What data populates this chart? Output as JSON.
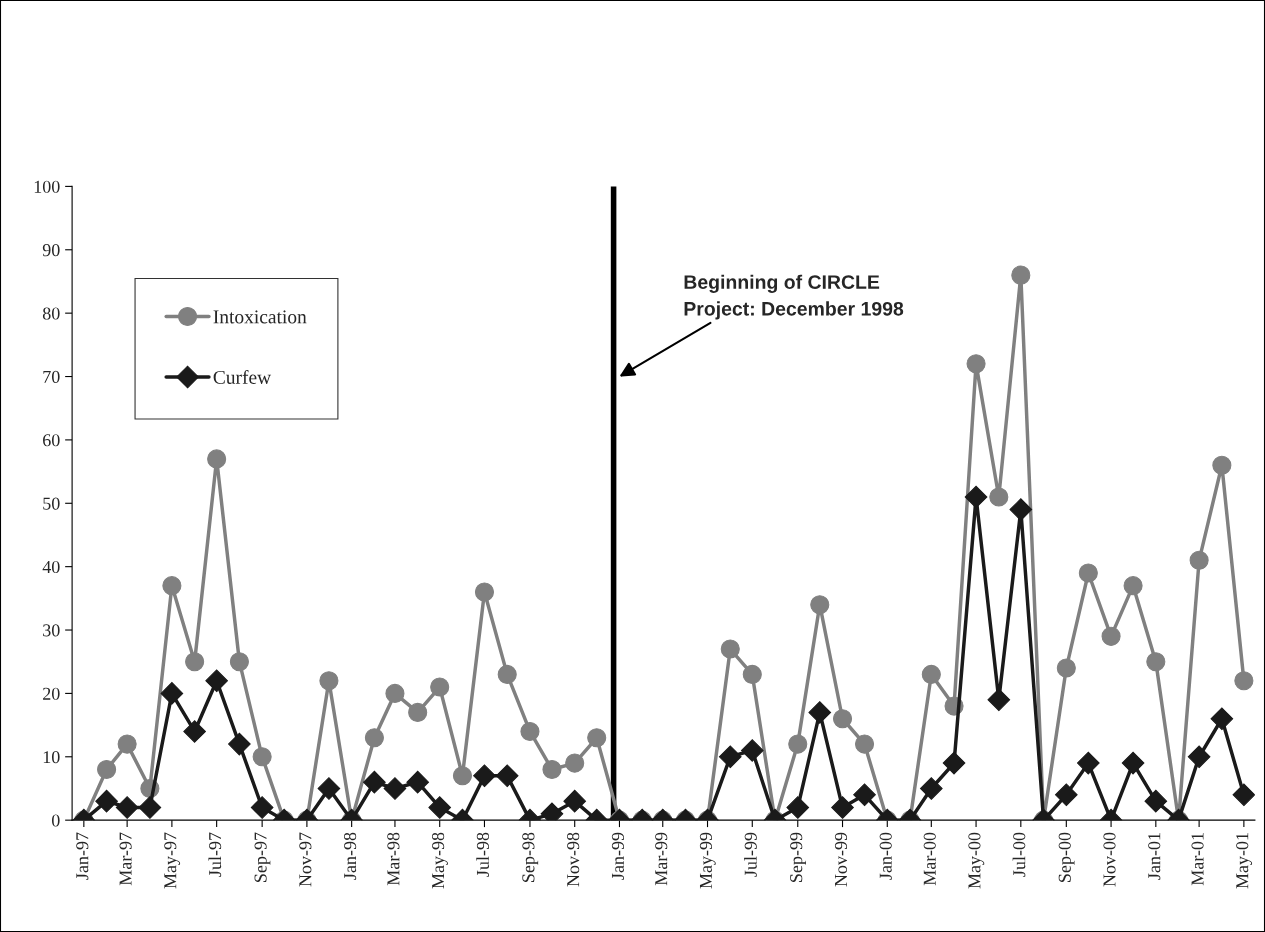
{
  "chart_data": {
    "type": "line",
    "x": [
      "1997-01",
      "1997-02",
      "1997-03",
      "1997-04",
      "1997-05",
      "1997-06",
      "1997-07",
      "1997-08",
      "1997-09",
      "1997-10",
      "1997-11",
      "1997-12",
      "1998-01",
      "1998-02",
      "1998-03",
      "1998-04",
      "1998-05",
      "1998-06",
      "1998-07",
      "1998-08",
      "1998-09",
      "1998-10",
      "1998-11",
      "1998-12",
      "1999-01",
      "1999-02",
      "1999-03",
      "1999-04",
      "1999-05",
      "1999-06",
      "1999-07",
      "1999-08",
      "1999-09",
      "1999-10",
      "1999-11",
      "1999-12",
      "2000-01",
      "2000-02",
      "2000-03",
      "2000-04",
      "2000-05",
      "2000-06",
      "2000-07",
      "2000-08",
      "2000-09",
      "2000-10",
      "2000-11",
      "2000-12",
      "2001-01",
      "2001-02",
      "2001-03",
      "2001-04",
      "2001-05"
    ],
    "series": [
      {
        "name": "Intoxication",
        "color": "#808080",
        "marker": "circle",
        "values": [
          0,
          8,
          12,
          5,
          37,
          25,
          57,
          25,
          10,
          0,
          0,
          22,
          0,
          13,
          20,
          17,
          21,
          7,
          36,
          23,
          14,
          8,
          9,
          13,
          0,
          0,
          0,
          0,
          0,
          27,
          23,
          0,
          12,
          34,
          16,
          12,
          0,
          0,
          23,
          18,
          72,
          51,
          86,
          0,
          24,
          39,
          29,
          37,
          25,
          0,
          41,
          56,
          22
        ]
      },
      {
        "name": "Curfew",
        "color": "#1a1a1a",
        "marker": "diamond",
        "values": [
          0,
          3,
          2,
          2,
          20,
          14,
          22,
          12,
          2,
          0,
          0,
          5,
          0,
          6,
          5,
          6,
          2,
          0,
          7,
          7,
          0,
          1,
          3,
          0,
          0,
          0,
          0,
          0,
          0,
          10,
          11,
          0,
          2,
          17,
          2,
          4,
          0,
          0,
          5,
          9,
          51,
          19,
          49,
          0,
          4,
          9,
          0,
          9,
          3,
          0,
          10,
          16,
          4
        ]
      }
    ],
    "xlim": [
      "1996-12-16",
      "2001-05-16"
    ],
    "xticks": [
      {
        "value": "1997-01",
        "label": "Jan-97"
      },
      {
        "value": "1997-03",
        "label": "Mar-97"
      },
      {
        "value": "1997-05",
        "label": "May-97"
      },
      {
        "value": "1997-07",
        "label": "Jul-97"
      },
      {
        "value": "1997-09",
        "label": "Sep-97"
      },
      {
        "value": "1997-11",
        "label": "Nov-97"
      },
      {
        "value": "1998-01",
        "label": "Jan-98"
      },
      {
        "value": "1998-03",
        "label": "Mar-98"
      },
      {
        "value": "1998-05",
        "label": "May-98"
      },
      {
        "value": "1998-07",
        "label": "Jul-98"
      },
      {
        "value": "1998-09",
        "label": "Sep-98"
      },
      {
        "value": "1998-11",
        "label": "Nov-98"
      },
      {
        "value": "1999-01",
        "label": "Jan-99"
      },
      {
        "value": "1999-03",
        "label": "Mar-99"
      },
      {
        "value": "1999-05",
        "label": "May-99"
      },
      {
        "value": "1999-07",
        "label": "Jul-99"
      },
      {
        "value": "1999-09",
        "label": "Sep-99"
      },
      {
        "value": "1999-11",
        "label": "Nov-99"
      },
      {
        "value": "2000-01",
        "label": "Jan-00"
      },
      {
        "value": "2000-03",
        "label": "Mar-00"
      },
      {
        "value": "2000-05",
        "label": "May-00"
      },
      {
        "value": "2000-07",
        "label": "Jul-00"
      },
      {
        "value": "2000-09",
        "label": "Sep-00"
      },
      {
        "value": "2000-11",
        "label": "Nov-00"
      },
      {
        "value": "2001-01",
        "label": "Jan-01"
      },
      {
        "value": "2001-03",
        "label": "Mar-01"
      },
      {
        "value": "2001-05",
        "label": "May-01"
      }
    ],
    "ylim": [
      0,
      100
    ],
    "yticks": [
      0,
      10,
      20,
      30,
      40,
      50,
      60,
      70,
      80,
      90,
      100
    ],
    "ref_lines": [
      {
        "axis": "x",
        "value": "1998-12-24",
        "label": "Beginning of CIRCLE\nProject: December 1998",
        "color": "#000000",
        "line_style": "solid"
      }
    ],
    "legend": "upper left",
    "grid": false
  }
}
